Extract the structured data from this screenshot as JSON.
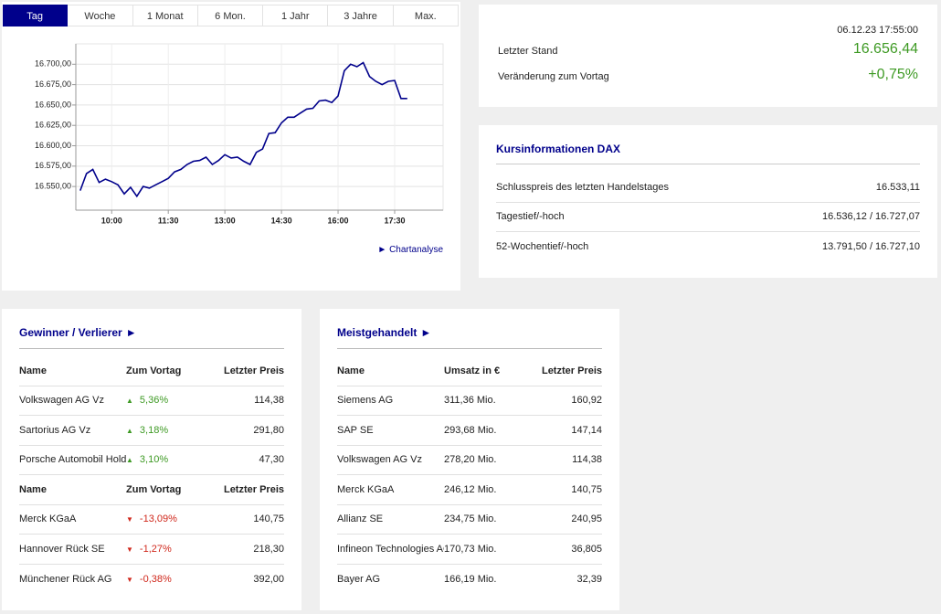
{
  "tabs": [
    "Tag",
    "Woche",
    "1 Monat",
    "6 Mon.",
    "1 Jahr",
    "3 Jahre",
    "Max."
  ],
  "chart_data": {
    "type": "line",
    "x": [
      550,
      560,
      570,
      580,
      590,
      600,
      610,
      620,
      630,
      640,
      650,
      660,
      670,
      680,
      690,
      700,
      710,
      720,
      730,
      740,
      750,
      760,
      770,
      780,
      790,
      800,
      810,
      820,
      830,
      840,
      850,
      860,
      870,
      880,
      890,
      900,
      910,
      920,
      930,
      940,
      950,
      960,
      970,
      980,
      990,
      1000,
      1010,
      1020,
      1030,
      1040,
      1050,
      1060,
      1070
    ],
    "series": [
      {
        "color": "#00008b",
        "values": [
          16545,
          16566,
          16571,
          16555,
          16559,
          16556,
          16552,
          16541,
          16549,
          16538,
          16550,
          16548,
          16552,
          16556,
          16560,
          16568,
          16571,
          16577,
          16581,
          16582,
          16586,
          16577,
          16582,
          16589,
          16585,
          16586,
          16581,
          16577,
          16592,
          16596,
          16615,
          16616,
          16628,
          16635,
          16635,
          16640,
          16645,
          16646,
          16655,
          16656,
          16653,
          16661,
          16692,
          16700,
          16697,
          16702,
          16685,
          16679,
          16675,
          16679,
          16680,
          16658,
          16658
        ]
      }
    ],
    "xlim": [
      543,
      1127
    ],
    "xticks": [
      {
        "value": 600,
        "label": "10:00"
      },
      {
        "value": 690,
        "label": "11:30"
      },
      {
        "value": 780,
        "label": "13:00"
      },
      {
        "value": 870,
        "label": "14:30"
      },
      {
        "value": 960,
        "label": "16:00"
      },
      {
        "value": 1050,
        "label": "17:30"
      }
    ],
    "ylim": [
      16521,
      16725
    ],
    "yticks": [
      {
        "value": 16550,
        "label": "16.550,00"
      },
      {
        "value": 16575,
        "label": "16.575,00"
      },
      {
        "value": 16600,
        "label": "16.600,00"
      },
      {
        "value": 16625,
        "label": "16.625,00"
      },
      {
        "value": 16650,
        "label": "16.650,00"
      },
      {
        "value": 16675,
        "label": "16.675,00"
      },
      {
        "value": 16700,
        "label": "16.700,00"
      }
    ],
    "grid": true,
    "link": "Chartanalyse"
  },
  "quote": {
    "timestamp": "06.12.23 17:55:00",
    "rows": [
      {
        "label": "Letzter Stand",
        "value": "16.656,44"
      },
      {
        "label": "Veränderung zum Vortag",
        "value": "+0,75%"
      }
    ]
  },
  "kursinfo": {
    "title": "Kursinformationen DAX",
    "rows": [
      [
        "Schlusspreis des letzten Handelstages",
        "16.533,11"
      ],
      [
        "Tagestief/-hoch",
        "16.536,12 / 16.727,07"
      ],
      [
        "52-Wochentief/-hoch",
        "13.791,50 / 16.727,10"
      ]
    ]
  },
  "movers": {
    "title": "Gewinner / Verlierer",
    "sections": [
      {
        "header": [
          "Name",
          "Zum Vortag",
          "Letzter Preis"
        ],
        "rows": [
          [
            "Volkswagen AG Vz",
            "5,36%",
            "114,38"
          ],
          [
            "Sartorius AG Vz",
            "3,18%",
            "291,80"
          ],
          [
            "Porsche Automobil Holding…",
            "3,10%",
            "47,30"
          ]
        ]
      },
      {
        "header": [
          "Name",
          "Zum Vortag",
          "Letzter Preis"
        ],
        "rows": [
          [
            "Merck KGaA",
            "-13,09%",
            "140,75"
          ],
          [
            "Hannover Rück SE",
            "-1,27%",
            "218,30"
          ],
          [
            "Münchener Rück AG",
            "-0,38%",
            "392,00"
          ]
        ]
      }
    ]
  },
  "most_traded": {
    "title": "Meistgehandelt",
    "header": [
      "Name",
      "Umsatz in €",
      "Letzter Preis"
    ],
    "rows": [
      [
        "Siemens AG",
        "311,36 Mio.",
        "160,92"
      ],
      [
        "SAP SE",
        "293,68 Mio.",
        "147,14"
      ],
      [
        "Volkswagen AG Vz",
        "278,20 Mio.",
        "114,38"
      ],
      [
        "Merck KGaA",
        "246,12 Mio.",
        "140,75"
      ],
      [
        "Allianz SE",
        "234,75 Mio.",
        "240,95"
      ],
      [
        "Infineon Technologies AG",
        "170,73 Mio.",
        "36,805"
      ],
      [
        "Bayer AG",
        "166,19 Mio.",
        "32,39"
      ]
    ]
  }
}
